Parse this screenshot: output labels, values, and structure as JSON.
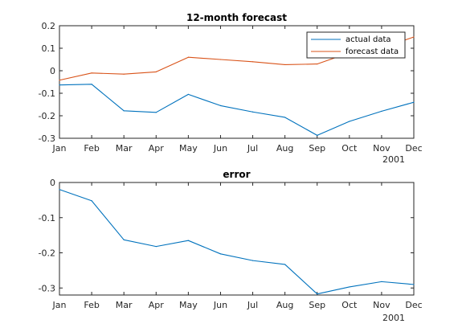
{
  "chart_data": [
    {
      "type": "line",
      "title": "12-month forecast",
      "xlabel": "",
      "ylabel": "",
      "categories": [
        "Jan",
        "Feb",
        "Mar",
        "Apr",
        "May",
        "Jun",
        "Jul",
        "Aug",
        "Sep",
        "Oct",
        "Nov",
        "Dec"
      ],
      "x_secondary_label": "2001",
      "ylim": [
        -0.3,
        0.2
      ],
      "yticks": [
        -0.3,
        -0.2,
        -0.1,
        0,
        0.1,
        0.2
      ],
      "ytick_labels": [
        "-0.3",
        "-0.2",
        "-0.1",
        "0",
        "0.1",
        "0.2"
      ],
      "grid": false,
      "legend_position": "top-right",
      "series": [
        {
          "name": "actual data",
          "color": "#0072BD",
          "values": [
            -0.063,
            -0.06,
            -0.178,
            -0.185,
            -0.105,
            -0.155,
            -0.183,
            -0.207,
            -0.287,
            -0.225,
            -0.18,
            -0.14
          ]
        },
        {
          "name": "forecast data",
          "color": "#D95319",
          "values": [
            -0.042,
            -0.01,
            -0.015,
            -0.005,
            0.06,
            0.05,
            0.04,
            0.027,
            0.03,
            0.08,
            0.1,
            0.15
          ]
        }
      ]
    },
    {
      "type": "line",
      "title": "error",
      "xlabel": "",
      "ylabel": "",
      "categories": [
        "Jan",
        "Feb",
        "Mar",
        "Apr",
        "May",
        "Jun",
        "Jul",
        "Aug",
        "Sep",
        "Oct",
        "Nov",
        "Dec"
      ],
      "x_secondary_label": "2001",
      "ylim": [
        -0.32,
        0
      ],
      "yticks": [
        -0.3,
        -0.2,
        -0.1,
        0
      ],
      "ytick_labels": [
        "-0.3",
        "-0.2",
        "-0.1",
        "0"
      ],
      "grid": false,
      "legend_position": "none",
      "series": [
        {
          "name": "",
          "color": "#0072BD",
          "values": [
            -0.02,
            -0.052,
            -0.163,
            -0.182,
            -0.165,
            -0.203,
            -0.222,
            -0.233,
            -0.317,
            -0.297,
            -0.282,
            -0.29
          ]
        }
      ]
    }
  ]
}
